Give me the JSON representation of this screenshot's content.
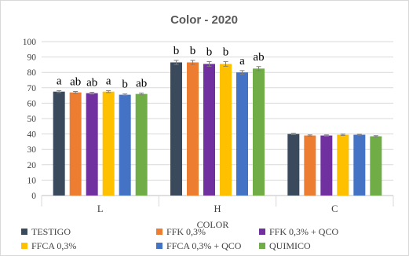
{
  "chart_data": {
    "type": "bar",
    "title": "Color -  2020",
    "xlabel": "COLOR",
    "ylabel": "",
    "ylim": [
      0,
      100
    ],
    "yticks": [
      0,
      10,
      20,
      30,
      40,
      50,
      60,
      70,
      80,
      90,
      100
    ],
    "grid": true,
    "legend_position": "bottom",
    "categories": [
      "L",
      "H",
      "C"
    ],
    "series": [
      {
        "name": "TESTIGO",
        "color": "#3a4a5c",
        "values": [
          67.5,
          86.5,
          40.0
        ],
        "errors": [
          0.6,
          1.3,
          0.4
        ],
        "letters": [
          "a",
          "b",
          ""
        ]
      },
      {
        "name": "FFK 0,3%",
        "color": "#ed7d31",
        "values": [
          67.0,
          86.5,
          39.0
        ],
        "errors": [
          0.6,
          1.3,
          0.4
        ],
        "letters": [
          "ab",
          "b",
          ""
        ]
      },
      {
        "name": "FFK 0,3% + QCO",
        "color": "#7030a0",
        "values": [
          66.5,
          85.5,
          39.0
        ],
        "errors": [
          0.6,
          1.5,
          0.4
        ],
        "letters": [
          "ab",
          "b",
          ""
        ]
      },
      {
        "name": "FFCA 0,3%",
        "color": "#ffc000",
        "values": [
          67.5,
          85.5,
          39.5
        ],
        "errors": [
          0.6,
          1.5,
          0.4
        ],
        "letters": [
          "a",
          "b",
          ""
        ]
      },
      {
        "name": "FFCA 0,3% + QCO",
        "color": "#4472c4",
        "values": [
          65.5,
          80.0,
          39.5
        ],
        "errors": [
          0.5,
          1.2,
          0.3
        ],
        "letters": [
          "b",
          "a",
          ""
        ]
      },
      {
        "name": "QUIMICO",
        "color": "#70ad47",
        "values": [
          66.0,
          82.5,
          38.5
        ],
        "errors": [
          0.6,
          1.3,
          0.4
        ],
        "letters": [
          "ab",
          "ab",
          ""
        ]
      }
    ]
  }
}
